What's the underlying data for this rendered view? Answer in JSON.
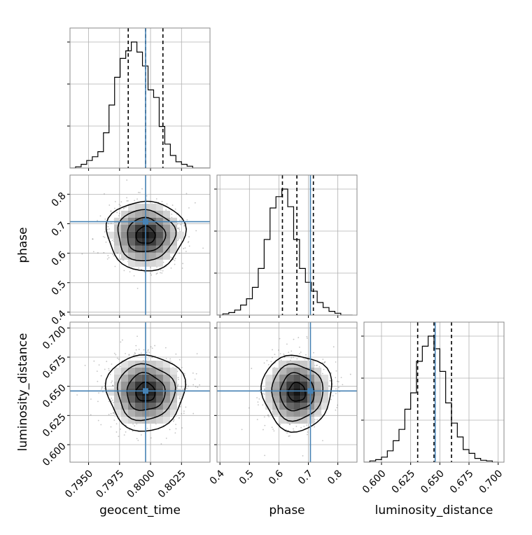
{
  "chart_data": {
    "type": "corner",
    "parameters": [
      "geocent_time",
      "phase",
      "luminosity_distance"
    ],
    "axis_labels": {
      "geocent_time": "geocent_time",
      "phase": "phase",
      "luminosity_distance": "luminosity_distance"
    },
    "ranges": {
      "geocent_time": [
        0.7935,
        0.8048
      ],
      "phase": [
        0.39,
        0.865
      ],
      "luminosity_distance": [
        0.585,
        0.705
      ]
    },
    "ticks": {
      "geocent_time": [
        0.795,
        0.7975,
        0.8,
        0.8025
      ],
      "phase": [
        0.4,
        0.5,
        0.6,
        0.7,
        0.8
      ],
      "luminosity_distance": [
        0.6,
        0.625,
        0.65,
        0.675,
        0.7
      ]
    },
    "tick_labels": {
      "geocent_time": [
        "0.7950",
        "0.7975",
        "0.8000",
        "0.8025"
      ],
      "phase": [
        "0.4",
        "0.5",
        "0.6",
        "0.7",
        "0.8"
      ],
      "luminosity_distance": [
        "0.600",
        "0.625",
        "0.650",
        "0.675",
        "0.700"
      ]
    },
    "truths": {
      "geocent_time": 0.7996,
      "phase": 0.707,
      "luminosity_distance": 0.646
    },
    "quantiles": {
      "geocent_time": [
        0.7982,
        0.7996,
        0.801
      ],
      "phase": [
        0.612,
        0.661,
        0.717
      ],
      "luminosity_distance": [
        0.631,
        0.645,
        0.66
      ]
    },
    "histograms": {
      "geocent_time": {
        "edges": [
          0.7935,
          0.79395,
          0.7944,
          0.79485,
          0.7953,
          0.79575,
          0.7962,
          0.79665,
          0.7971,
          0.79755,
          0.798,
          0.79845,
          0.7989,
          0.79935,
          0.7998,
          0.80025,
          0.8007,
          0.80115,
          0.8016,
          0.80205,
          0.8025,
          0.80295,
          0.8034,
          0.80385,
          0.8043,
          0.80475
        ],
        "counts": [
          0,
          0.01,
          0.03,
          0.06,
          0.09,
          0.13,
          0.28,
          0.5,
          0.72,
          0.87,
          0.93,
          1.0,
          0.92,
          0.81,
          0.62,
          0.56,
          0.33,
          0.19,
          0.1,
          0.05,
          0.03,
          0.015,
          0,
          0,
          0
        ]
      },
      "phase": {
        "edges": [
          0.39,
          0.41,
          0.43,
          0.45,
          0.47,
          0.49,
          0.51,
          0.53,
          0.55,
          0.57,
          0.59,
          0.61,
          0.63,
          0.65,
          0.67,
          0.69,
          0.71,
          0.73,
          0.75,
          0.77,
          0.79,
          0.81,
          0.83,
          0.85
        ],
        "counts": [
          0,
          0.01,
          0.02,
          0.04,
          0.08,
          0.13,
          0.22,
          0.37,
          0.6,
          0.85,
          0.94,
          1.0,
          0.86,
          0.6,
          0.37,
          0.26,
          0.19,
          0.1,
          0.06,
          0.03,
          0.015,
          0,
          0
        ]
      },
      "luminosity_distance": {
        "edges": [
          0.585,
          0.59,
          0.595,
          0.6,
          0.605,
          0.61,
          0.615,
          0.62,
          0.625,
          0.63,
          0.635,
          0.64,
          0.645,
          0.65,
          0.655,
          0.66,
          0.665,
          0.67,
          0.675,
          0.68,
          0.685,
          0.69,
          0.695,
          0.7
        ],
        "counts": [
          0,
          0.01,
          0.02,
          0.04,
          0.09,
          0.17,
          0.26,
          0.42,
          0.55,
          0.8,
          0.92,
          1.0,
          0.9,
          0.72,
          0.47,
          0.31,
          0.2,
          0.1,
          0.07,
          0.03,
          0.015,
          0.01,
          0
        ]
      }
    },
    "grid": true
  }
}
